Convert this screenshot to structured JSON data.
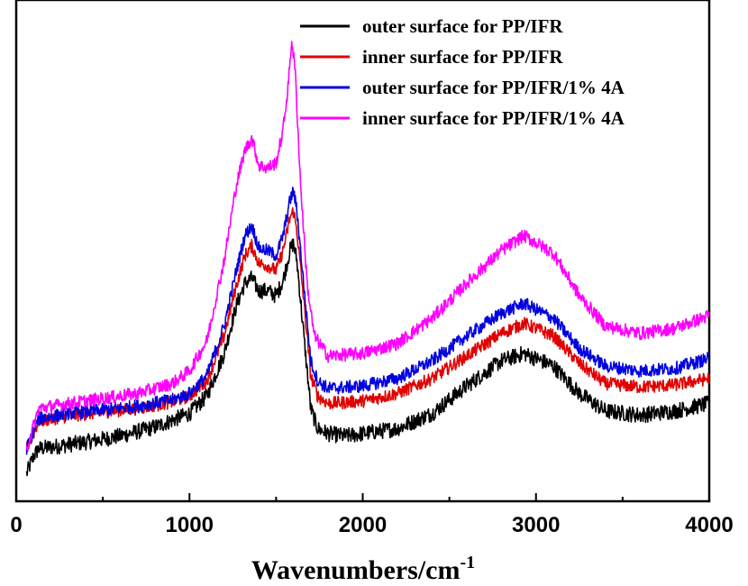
{
  "chart_data": {
    "type": "line",
    "title": "",
    "xlabel": "Wavenumbers/cm",
    "xlabel_superscript": "-1",
    "ylabel": "",
    "xlim": [
      0,
      4000
    ],
    "ylim": [
      0,
      10
    ],
    "xticks": [
      "0",
      "1000",
      "2000",
      "3000",
      "4000"
    ],
    "y_tick_labels_shown": false,
    "grid": false,
    "legend_position": "top-right",
    "series": [
      {
        "name": "outer surface for PP/IFR",
        "color": "#000000",
        "noise": 0.16,
        "points": [
          [
            60,
            0.55
          ],
          [
            100,
            0.9
          ],
          [
            130,
            1.05
          ],
          [
            200,
            1.08
          ],
          [
            400,
            1.18
          ],
          [
            600,
            1.3
          ],
          [
            800,
            1.48
          ],
          [
            1000,
            1.75
          ],
          [
            1100,
            2.1
          ],
          [
            1200,
            2.95
          ],
          [
            1270,
            3.9
          ],
          [
            1320,
            4.35
          ],
          [
            1360,
            4.45
          ],
          [
            1400,
            4.2
          ],
          [
            1450,
            4.2
          ],
          [
            1500,
            4.1
          ],
          [
            1540,
            4.4
          ],
          [
            1580,
            5.0
          ],
          [
            1600,
            5.15
          ],
          [
            1620,
            4.8
          ],
          [
            1660,
            3.3
          ],
          [
            1700,
            1.85
          ],
          [
            1740,
            1.45
          ],
          [
            1800,
            1.35
          ],
          [
            1900,
            1.3
          ],
          [
            2000,
            1.35
          ],
          [
            2200,
            1.45
          ],
          [
            2400,
            1.75
          ],
          [
            2600,
            2.3
          ],
          [
            2800,
            2.8
          ],
          [
            2930,
            2.95
          ],
          [
            3100,
            2.7
          ],
          [
            3250,
            2.15
          ],
          [
            3400,
            1.8
          ],
          [
            3600,
            1.72
          ],
          [
            3800,
            1.8
          ],
          [
            4000,
            1.95
          ]
        ]
      },
      {
        "name": "inner surface for PP/IFR",
        "color": "#e00000",
        "noise": 0.13,
        "points": [
          [
            60,
            1.05
          ],
          [
            100,
            1.35
          ],
          [
            130,
            1.6
          ],
          [
            300,
            1.7
          ],
          [
            500,
            1.78
          ],
          [
            700,
            1.85
          ],
          [
            900,
            1.98
          ],
          [
            1000,
            2.1
          ],
          [
            1100,
            2.4
          ],
          [
            1200,
            3.3
          ],
          [
            1270,
            4.3
          ],
          [
            1320,
            4.9
          ],
          [
            1360,
            5.1
          ],
          [
            1400,
            4.75
          ],
          [
            1450,
            4.7
          ],
          [
            1500,
            4.6
          ],
          [
            1540,
            5.0
          ],
          [
            1580,
            5.65
          ],
          [
            1600,
            5.8
          ],
          [
            1620,
            5.4
          ],
          [
            1660,
            4.0
          ],
          [
            1700,
            2.5
          ],
          [
            1740,
            2.1
          ],
          [
            1800,
            1.95
          ],
          [
            2000,
            2.0
          ],
          [
            2200,
            2.15
          ],
          [
            2400,
            2.45
          ],
          [
            2600,
            2.9
          ],
          [
            2800,
            3.35
          ],
          [
            2930,
            3.55
          ],
          [
            3100,
            3.3
          ],
          [
            3250,
            2.75
          ],
          [
            3400,
            2.35
          ],
          [
            3600,
            2.28
          ],
          [
            3800,
            2.32
          ],
          [
            4000,
            2.45
          ]
        ]
      },
      {
        "name": "outer surface for PP/IFR/1% 4A",
        "color": "#0000e0",
        "noise": 0.13,
        "points": [
          [
            60,
            1.05
          ],
          [
            100,
            1.4
          ],
          [
            130,
            1.65
          ],
          [
            300,
            1.75
          ],
          [
            500,
            1.82
          ],
          [
            700,
            1.9
          ],
          [
            900,
            2.02
          ],
          [
            1000,
            2.15
          ],
          [
            1100,
            2.5
          ],
          [
            1200,
            3.5
          ],
          [
            1270,
            4.6
          ],
          [
            1320,
            5.3
          ],
          [
            1360,
            5.5
          ],
          [
            1400,
            5.05
          ],
          [
            1450,
            5.0
          ],
          [
            1500,
            4.9
          ],
          [
            1540,
            5.3
          ],
          [
            1580,
            6.0
          ],
          [
            1600,
            6.2
          ],
          [
            1620,
            5.8
          ],
          [
            1660,
            4.3
          ],
          [
            1700,
            2.8
          ],
          [
            1740,
            2.4
          ],
          [
            1800,
            2.25
          ],
          [
            2000,
            2.3
          ],
          [
            2200,
            2.45
          ],
          [
            2400,
            2.8
          ],
          [
            2600,
            3.3
          ],
          [
            2800,
            3.75
          ],
          [
            2930,
            3.95
          ],
          [
            3100,
            3.65
          ],
          [
            3250,
            3.05
          ],
          [
            3400,
            2.7
          ],
          [
            3600,
            2.6
          ],
          [
            3800,
            2.65
          ],
          [
            4000,
            2.85
          ]
        ]
      },
      {
        "name": "inner surface for PP/IFR/1% 4A",
        "color": "#ff00ff",
        "noise": 0.13,
        "points": [
          [
            60,
            1.05
          ],
          [
            100,
            1.5
          ],
          [
            130,
            1.85
          ],
          [
            300,
            1.95
          ],
          [
            500,
            2.05
          ],
          [
            700,
            2.15
          ],
          [
            900,
            2.35
          ],
          [
            1000,
            2.6
          ],
          [
            1100,
            3.2
          ],
          [
            1200,
            4.8
          ],
          [
            1270,
            6.3
          ],
          [
            1320,
            7.0
          ],
          [
            1360,
            7.25
          ],
          [
            1400,
            6.7
          ],
          [
            1450,
            6.65
          ],
          [
            1500,
            6.75
          ],
          [
            1540,
            7.4
          ],
          [
            1570,
            8.3
          ],
          [
            1590,
            9.2
          ],
          [
            1610,
            8.6
          ],
          [
            1640,
            6.4
          ],
          [
            1680,
            4.3
          ],
          [
            1720,
            3.3
          ],
          [
            1800,
            2.9
          ],
          [
            2000,
            2.95
          ],
          [
            2200,
            3.15
          ],
          [
            2400,
            3.65
          ],
          [
            2600,
            4.35
          ],
          [
            2800,
            5.0
          ],
          [
            2930,
            5.3
          ],
          [
            3100,
            4.95
          ],
          [
            3250,
            4.1
          ],
          [
            3400,
            3.5
          ],
          [
            3600,
            3.35
          ],
          [
            3800,
            3.45
          ],
          [
            4000,
            3.7
          ]
        ]
      }
    ]
  }
}
